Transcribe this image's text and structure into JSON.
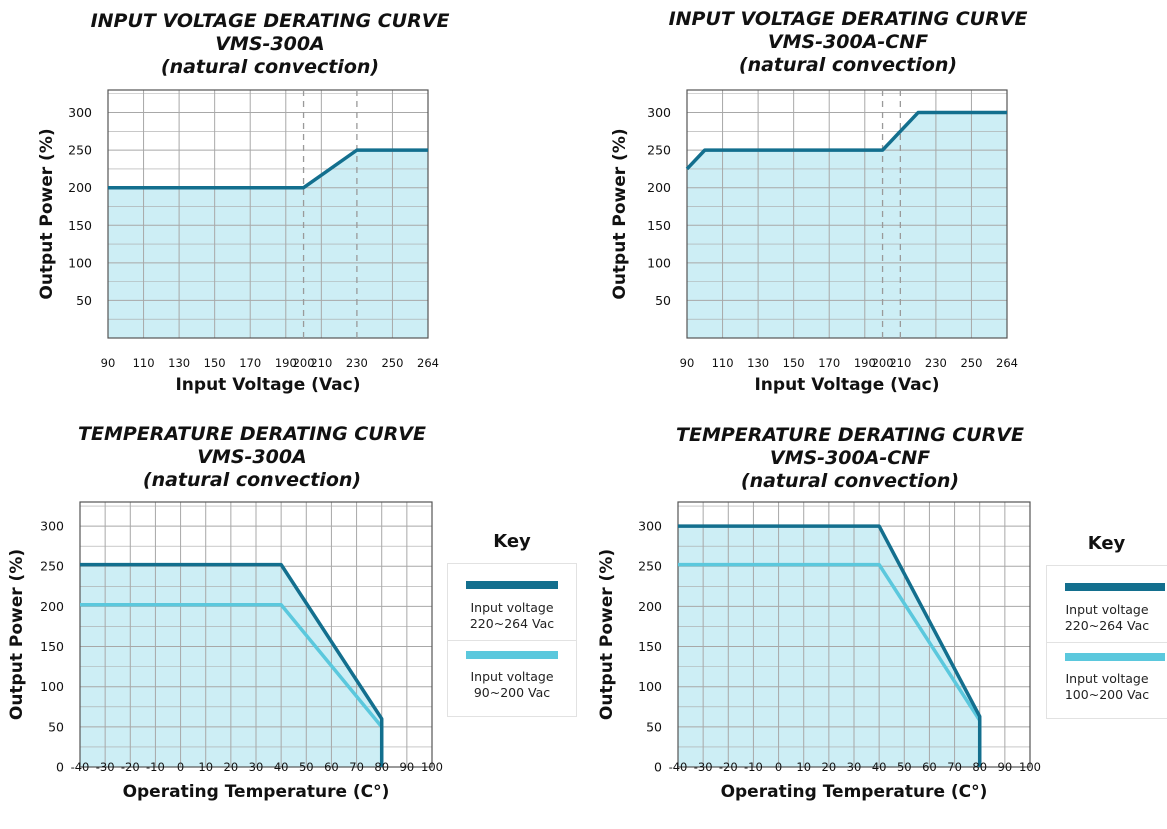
{
  "colors": {
    "fill": "#cdeef5",
    "dark_line": "#136f8e",
    "light_line": "#5bc8dd",
    "grid": "#a8a8a8",
    "dash": "#9a9a9a"
  },
  "chart_data": [
    {
      "type": "line",
      "title": [
        "INPUT VOLTAGE DERATING CURVE",
        "VMS-300A",
        "(natural convection)"
      ],
      "xlabel": "Input Voltage (Vac)",
      "ylabel": "Output Power (%)",
      "x_ticks": [
        "90",
        "110",
        "130",
        "150",
        "170",
        "190",
        "200",
        "210",
        "230",
        "250",
        "264"
      ],
      "y_ticks": [
        "300",
        "250",
        "200",
        "150",
        "100",
        "50"
      ],
      "ylim": [
        0,
        330
      ],
      "dashed_at": [
        "200",
        "230"
      ],
      "series": [
        {
          "color": "#136f8e",
          "points": [
            [
              "90",
              200
            ],
            [
              "200",
              200
            ],
            [
              "230",
              250
            ],
            [
              "264",
              250
            ]
          ]
        }
      ]
    },
    {
      "type": "line",
      "title": [
        "INPUT VOLTAGE DERATING CURVE",
        "VMS-300A-CNF",
        "(natural convection)"
      ],
      "xlabel": "Input Voltage (Vac)",
      "ylabel": "Output Power (%)",
      "x_ticks": [
        "90",
        "110",
        "130",
        "150",
        "170",
        "190",
        "200",
        "210",
        "230",
        "250",
        "264"
      ],
      "y_ticks": [
        "300",
        "250",
        "200",
        "150",
        "100",
        "50"
      ],
      "ylim": [
        0,
        330
      ],
      "dashed_at": [
        "200",
        "210"
      ],
      "series": [
        {
          "color": "#136f8e",
          "points": [
            [
              "90",
              225
            ],
            [
              "100",
              250
            ],
            [
              "200",
              250
            ],
            [
              "220",
              300
            ],
            [
              "264",
              300
            ]
          ]
        }
      ]
    },
    {
      "type": "line",
      "title": [
        "TEMPERATURE DERATING CURVE",
        "VMS-300A",
        "(natural convection)"
      ],
      "xlabel": "Operating Temperature (C°)",
      "ylabel": "Output Power (%)",
      "x_ticks": [
        "-40",
        "-30",
        "-20",
        "-10",
        "0",
        "10",
        "20",
        "30",
        "40",
        "50",
        "60",
        "70",
        "80",
        "90",
        "100"
      ],
      "y_ticks": [
        "300",
        "250",
        "200",
        "150",
        "100",
        "50",
        "0"
      ],
      "ylim": [
        0,
        330
      ],
      "series": [
        {
          "name": "Input voltage 220~264 Vac",
          "color": "#136f8e",
          "points": [
            [
              -40,
              252
            ],
            [
              40,
              252
            ],
            [
              80,
              60
            ],
            [
              80,
              0
            ]
          ]
        },
        {
          "name": "Input voltage 90~200 Vac",
          "color": "#5bc8dd",
          "points": [
            [
              -40,
              202
            ],
            [
              40,
              202
            ],
            [
              80,
              50
            ],
            [
              80,
              0
            ]
          ]
        }
      ],
      "legend": {
        "title": "Key",
        "items": [
          {
            "line1": "Input voltage",
            "line2": "220~264 Vac",
            "color": "#136f8e"
          },
          {
            "line1": "Input voltage",
            "line2": "90~200 Vac",
            "color": "#5bc8dd"
          }
        ]
      }
    },
    {
      "type": "line",
      "title": [
        "TEMPERATURE DERATING CURVE",
        "VMS-300A-CNF",
        "(natural convection)"
      ],
      "xlabel": "Operating Temperature (C°)",
      "ylabel": "Output Power (%)",
      "x_ticks": [
        "-40",
        "-30",
        "-20",
        "-10",
        "0",
        "10",
        "20",
        "30",
        "40",
        "50",
        "60",
        "70",
        "80",
        "90",
        "100"
      ],
      "y_ticks": [
        "300",
        "250",
        "200",
        "150",
        "100",
        "50",
        "0"
      ],
      "ylim": [
        0,
        330
      ],
      "series": [
        {
          "name": "Input voltage 220~264 Vac",
          "color": "#136f8e",
          "points": [
            [
              -40,
              300
            ],
            [
              40,
              300
            ],
            [
              80,
              63
            ],
            [
              80,
              0
            ]
          ]
        },
        {
          "name": "Input voltage 100~200 Vac",
          "color": "#5bc8dd",
          "points": [
            [
              -40,
              252
            ],
            [
              40,
              252
            ],
            [
              80,
              58
            ],
            [
              80,
              0
            ]
          ]
        }
      ],
      "legend": {
        "title": "Key",
        "items": [
          {
            "line1": "Input voltage",
            "line2": "220~264 Vac",
            "color": "#136f8e"
          },
          {
            "line1": "Input voltage",
            "line2": "100~200 Vac",
            "color": "#5bc8dd"
          }
        ]
      }
    }
  ]
}
